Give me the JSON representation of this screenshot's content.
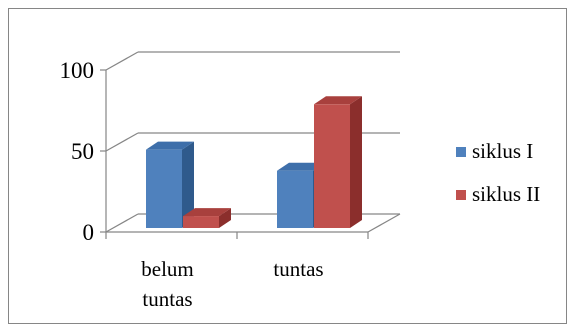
{
  "chart_data": {
    "type": "bar",
    "categories": [
      "belum tuntas",
      "tuntas"
    ],
    "category_label_lines": [
      [
        "belum",
        "tuntas"
      ],
      [
        "tuntas"
      ]
    ],
    "series": [
      {
        "name": "siklus I",
        "values": [
          57,
          44
        ],
        "color": "#4F81BD",
        "side_color": "#2F5A8C",
        "top_color": "#3E6FAA"
      },
      {
        "name": "siklus II",
        "values": [
          16,
          85
        ],
        "color": "#C0504D",
        "side_color": "#8B2E2C",
        "top_color": "#A8403D"
      }
    ],
    "ylim": [
      0,
      100
    ],
    "yticks": [
      0,
      50,
      100
    ],
    "title": "",
    "xlabel": "",
    "ylabel": "",
    "grid": true,
    "three_d": true,
    "legend_position": "right"
  }
}
